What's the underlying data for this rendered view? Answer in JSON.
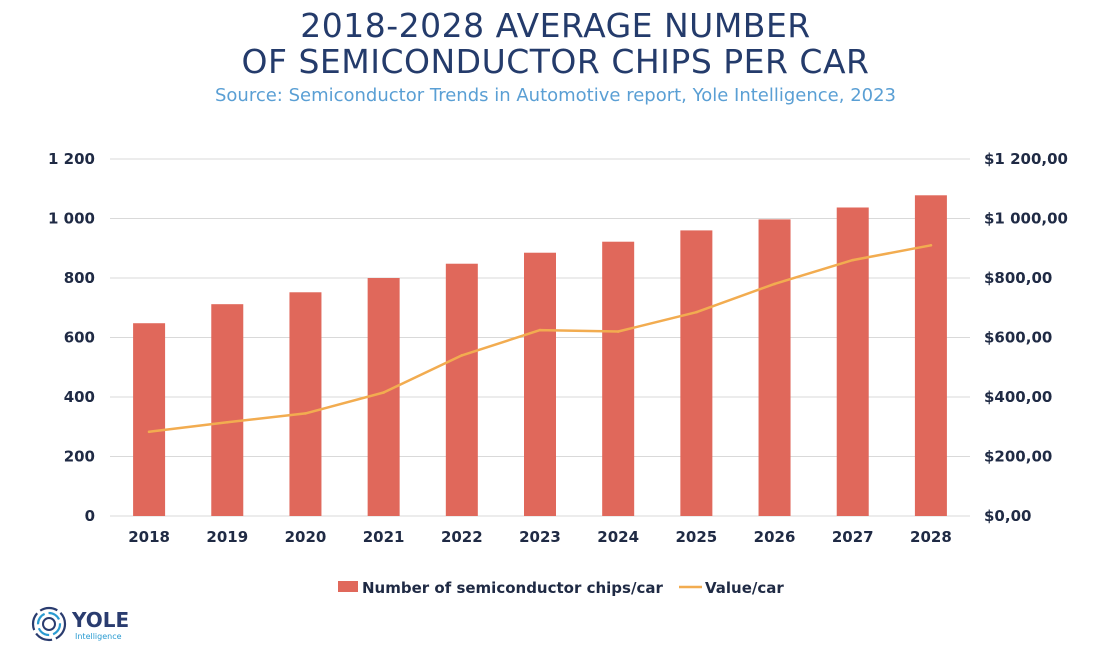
{
  "header": {
    "title_line1": "2018-2028 AVERAGE NUMBER",
    "title_line2": "OF SEMICONDUCTOR CHIPS PER CAR",
    "subtitle": "Source: Semiconductor Trends in Automotive report, Yole Intelligence, 2023"
  },
  "logo": {
    "name": "YOLE",
    "tagline": "Intelligence"
  },
  "chart_data": {
    "type": "bar",
    "categories": [
      "2018",
      "2019",
      "2020",
      "2021",
      "2022",
      "2023",
      "2024",
      "2025",
      "2026",
      "2027",
      "2028"
    ],
    "series": [
      {
        "name": "Number of semiconductor chips/car",
        "kind": "bar",
        "axis": "left",
        "color": "#e0685b",
        "values": [
          648,
          712,
          752,
          800,
          848,
          885,
          922,
          960,
          997,
          1037,
          1078
        ]
      },
      {
        "name": "Value/car",
        "kind": "line",
        "axis": "right",
        "color": "#f2ac50",
        "values": [
          283,
          315,
          345,
          415,
          540,
          625,
          620,
          685,
          780,
          860,
          910
        ]
      }
    ],
    "y_left": {
      "ylim": [
        0,
        1200
      ],
      "ticks": [
        0,
        200,
        400,
        600,
        800,
        1000,
        1200
      ],
      "tick_labels": [
        "0",
        "200",
        "400",
        "600",
        "800",
        "1 000",
        "1 200"
      ]
    },
    "y_right": {
      "ylim": [
        0,
        1200
      ],
      "ticks": [
        0,
        200,
        400,
        600,
        800,
        1000,
        1200
      ],
      "tick_labels": [
        "$0,00",
        "$200,00",
        "$400,00",
        "$600,00",
        "$800,00",
        "$1 000,00",
        "$1 200,00"
      ]
    },
    "grid": true,
    "gridline_color": "#d9d9d9",
    "legend_position": "bottom-center"
  }
}
